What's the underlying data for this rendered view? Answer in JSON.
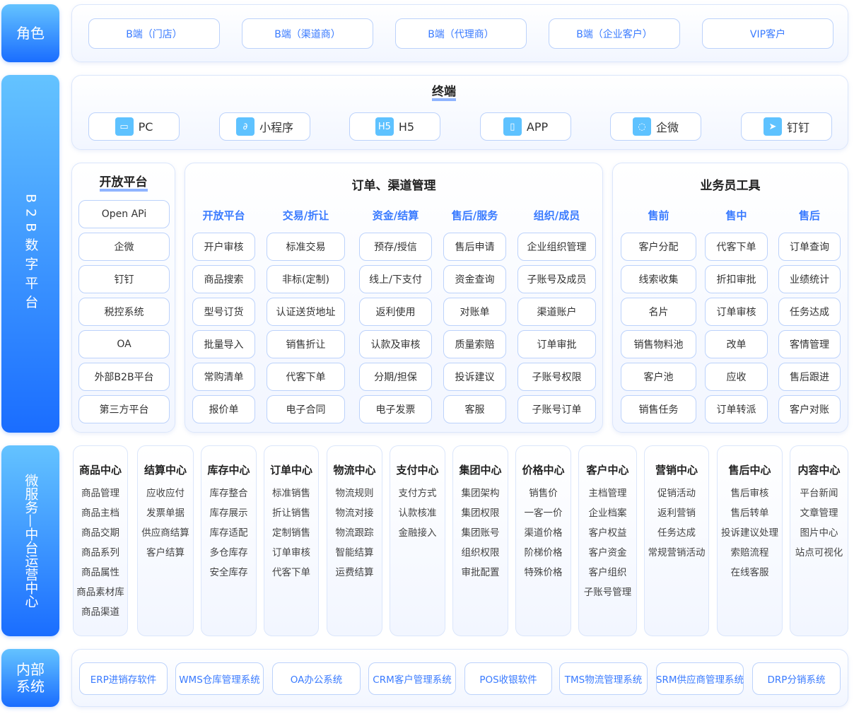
{
  "labels": {
    "role": "角色",
    "platform": "B2B数字平台",
    "micro": "微服务—中台运营中心",
    "internal_1": "内部",
    "internal_2": "系统"
  },
  "roles": [
    "B端（门店）",
    "B端（渠道商）",
    "B端（代理商）",
    "B端（企业客户）",
    "VIP客户"
  ],
  "terminal": {
    "title": "终端",
    "items": [
      {
        "label": "PC",
        "icon": "monitor-icon",
        "glyph": "▭"
      },
      {
        "label": "小程序",
        "icon": "mini-program-icon",
        "glyph": "∂"
      },
      {
        "label": "H5",
        "icon": "h5-icon",
        "glyph": "H5"
      },
      {
        "label": "APP",
        "icon": "phone-icon",
        "glyph": "▯"
      },
      {
        "label": "企微",
        "icon": "wecom-icon",
        "glyph": "◌"
      },
      {
        "label": "钉钉",
        "icon": "dingtalk-icon",
        "glyph": "➤"
      }
    ]
  },
  "open_platform": {
    "title": "开放平台",
    "items": [
      "Open APi",
      "企微",
      "钉钉",
      "税控系统",
      "OA",
      "外部B2B平台",
      "第三方平台"
    ]
  },
  "order_channel": {
    "title": "订单、渠道管理",
    "columns": [
      {
        "header": "开放平台",
        "items": [
          "开户审核",
          "商品搜索",
          "型号订货",
          "批量导入",
          "常购清单",
          "报价单"
        ]
      },
      {
        "header": "交易/折让",
        "items": [
          "标准交易",
          "非标(定制)",
          "认证送货地址",
          "销售折让",
          "代客下单",
          "电子合同"
        ]
      },
      {
        "header": "资金/结算",
        "items": [
          "预存/授信",
          "线上/下支付",
          "返利使用",
          "认款及审核",
          "分期/担保",
          "电子发票"
        ]
      },
      {
        "header": "售后/服务",
        "items": [
          "售后申请",
          "资金查询",
          "对账单",
          "质量索赔",
          "投诉建议",
          "客服"
        ]
      },
      {
        "header": "组织/成员",
        "items": [
          "企业组织管理",
          "子账号及成员",
          "渠道账户",
          "订单审批",
          "子账号权限",
          "子账号订单"
        ]
      }
    ]
  },
  "sales_tools": {
    "title": "业务员工具",
    "columns": [
      {
        "header": "售前",
        "items": [
          "客户分配",
          "线索收集",
          "名片",
          "销售物料池",
          "客户池",
          "销售任务"
        ]
      },
      {
        "header": "售中",
        "items": [
          "代客下单",
          "折扣审批",
          "订单审核",
          "改单",
          "应收",
          "订单转派"
        ]
      },
      {
        "header": "售后",
        "items": [
          "订单查询",
          "业绩统计",
          "任务达成",
          "客情管理",
          "售后跟进",
          "客户对账"
        ]
      }
    ]
  },
  "micro_centers": [
    {
      "title": "商品中心",
      "items": [
        "商品管理",
        "商品主档",
        "商品交期",
        "商品系列",
        "商品属性",
        "商品素材库",
        "商品渠道"
      ]
    },
    {
      "title": "结算中心",
      "items": [
        "应收应付",
        "发票单据",
        "供应商结算",
        "客户结算"
      ]
    },
    {
      "title": "库存中心",
      "items": [
        "库存整合",
        "库存展示",
        "库存适配",
        "多仓库存",
        "安全库存"
      ]
    },
    {
      "title": "订单中心",
      "items": [
        "标准销售",
        "折让销售",
        "定制销售",
        "订单审核",
        "代客下单"
      ]
    },
    {
      "title": "物流中心",
      "items": [
        "物流规则",
        "物流对接",
        "物流跟踪",
        "智能结算",
        "运费结算"
      ]
    },
    {
      "title": "支付中心",
      "items": [
        "支付方式",
        "认款核准",
        "金融接入"
      ]
    },
    {
      "title": "集团中心",
      "items": [
        "集团架构",
        "集团权限",
        "集团账号",
        "组织权限",
        "审批配置"
      ]
    },
    {
      "title": "价格中心",
      "items": [
        "销售价",
        "一客一价",
        "渠道价格",
        "阶梯价格",
        "特殊价格"
      ]
    },
    {
      "title": "客户中心",
      "items": [
        "主档管理",
        "企业档案",
        "客户权益",
        "客户资金",
        "客户组织",
        "子账号管理"
      ]
    },
    {
      "title": "营销中心",
      "items": [
        "促销活动",
        "返利营销",
        "任务达成",
        "常规营销活动"
      ]
    },
    {
      "title": "售后中心",
      "items": [
        "售后审核",
        "售后转单",
        "投诉建议处理",
        "索赔流程",
        "在线客服"
      ]
    },
    {
      "title": "内容中心",
      "items": [
        "平台新闻",
        "文章管理",
        "图片中心",
        "站点可视化"
      ]
    }
  ],
  "internal_systems": [
    "ERP进销存软件",
    "WMS仓库管理系统",
    "OA办公系统",
    "CRM客户管理系统",
    "POS收银软件",
    "TMS物流管理系统",
    "SRM供应商管理系统",
    "DRP分销系统"
  ],
  "colors": {
    "accent": "#3a7bff",
    "label_gradient_top": "#64c3ff",
    "label_gradient_bottom": "#1a6dff",
    "icon_bg": "#5ec2ff"
  }
}
